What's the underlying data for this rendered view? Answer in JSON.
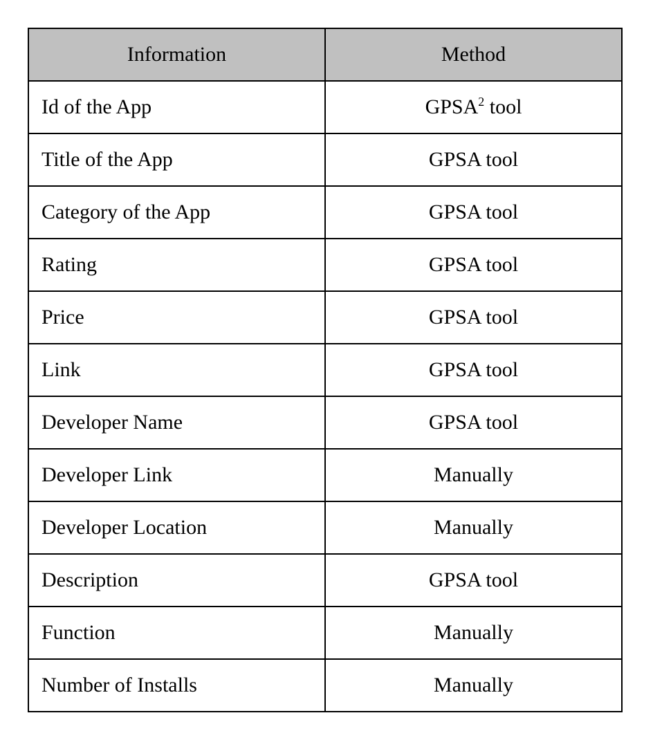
{
  "table": {
    "columns": [
      "Information",
      "Method"
    ],
    "header_bg_color": "#c0c0c0",
    "border_color": "#000000",
    "border_width": 2,
    "font_family": "Times New Roman",
    "font_size": 30,
    "col0_align": "left",
    "col1_align": "center",
    "column_widths": [
      "50%",
      "50%"
    ],
    "rows": [
      {
        "info": "Id of the App",
        "method": "GPSA",
        "sup": "2",
        "method_suffix": " tool"
      },
      {
        "info": "Title of the App",
        "method": "GPSA  tool",
        "sup": "",
        "method_suffix": ""
      },
      {
        "info": "Category of the App",
        "method": "GPSA  tool",
        "sup": "",
        "method_suffix": ""
      },
      {
        "info": "Rating",
        "method": "GPSA  tool",
        "sup": "",
        "method_suffix": ""
      },
      {
        "info": "Price",
        "method": "GPSA  tool",
        "sup": "",
        "method_suffix": ""
      },
      {
        "info": "Link",
        "method": "GPSA  tool",
        "sup": "",
        "method_suffix": ""
      },
      {
        "info": "Developer Name",
        "method": "GPSA  tool",
        "sup": "",
        "method_suffix": ""
      },
      {
        "info": "Developer Link",
        "method": "Manually",
        "sup": "",
        "method_suffix": ""
      },
      {
        "info": "Developer Location",
        "method": "Manually",
        "sup": "",
        "method_suffix": ""
      },
      {
        "info": "Description",
        "method": "GPSA  tool",
        "sup": "",
        "method_suffix": ""
      },
      {
        "info": "Function",
        "method": "Manually",
        "sup": "",
        "method_suffix": ""
      },
      {
        "info": "Number of Installs",
        "method": "Manually",
        "sup": "",
        "method_suffix": ""
      }
    ]
  }
}
